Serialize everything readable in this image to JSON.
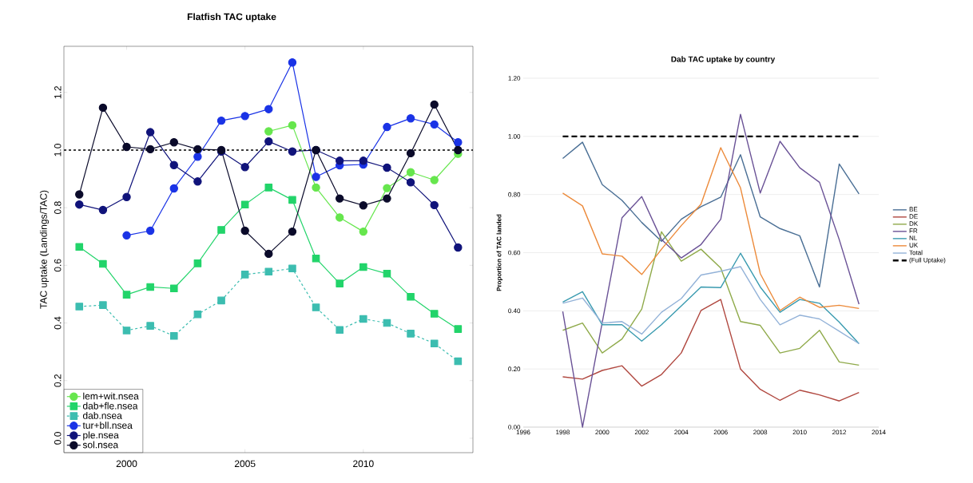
{
  "chart_data": [
    {
      "type": "line",
      "title": "Flatfish TAC uptake",
      "ylabel": "TAC uptake (Landings/TAC)",
      "x": [
        1998,
        1999,
        2000,
        2001,
        2002,
        2003,
        2004,
        2005,
        2006,
        2007,
        2008,
        2009,
        2010,
        2011,
        2012,
        2013,
        2014
      ],
      "series": [
        {
          "name": "lem+wit.nsea",
          "color": "#66e64d",
          "marker": "circle",
          "line_style": "solid",
          "values": [
            null,
            null,
            null,
            null,
            null,
            null,
            null,
            null,
            1.065,
            1.086,
            0.87,
            0.766,
            0.717,
            0.868,
            0.923,
            0.896,
            0.987
          ]
        },
        {
          "name": "dab+fle.nsea",
          "color": "#22d46a",
          "marker": "square",
          "line_style": "solid",
          "values": [
            0.664,
            0.605,
            0.498,
            0.525,
            0.52,
            0.607,
            0.723,
            0.811,
            0.87,
            0.827,
            0.624,
            0.537,
            0.594,
            0.571,
            0.491,
            0.432,
            0.379
          ]
        },
        {
          "name": "dab.nsea",
          "color": "#3cbdb0",
          "marker": "square",
          "line_style": "dashed",
          "values": [
            0.457,
            0.462,
            0.374,
            0.39,
            0.355,
            0.43,
            0.478,
            0.568,
            0.578,
            0.589,
            0.454,
            0.376,
            0.414,
            0.4,
            0.363,
            0.329,
            0.267
          ]
        },
        {
          "name": "tur+bll.nsea",
          "color": "#1a33e6",
          "marker": "circle",
          "line_style": "solid",
          "values": [
            null,
            null,
            0.704,
            0.72,
            0.867,
            0.977,
            1.102,
            1.118,
            1.142,
            1.304,
            0.907,
            0.947,
            0.95,
            1.08,
            1.11,
            1.089,
            1.027
          ]
        },
        {
          "name": "ple.nsea",
          "color": "#10137a",
          "marker": "circle",
          "line_style": "solid",
          "values": [
            0.811,
            0.792,
            0.837,
            1.062,
            0.948,
            0.891,
            0.995,
            0.941,
            1.03,
            0.995,
            1.0,
            0.963,
            0.963,
            0.939,
            0.888,
            0.809,
            0.662
          ]
        },
        {
          "name": "sol.nsea",
          "color": "#0a0a2a",
          "marker": "circle",
          "line_style": "solid",
          "values": [
            0.846,
            1.147,
            1.011,
            1.003,
            1.027,
            1.003,
            1.0,
            0.72,
            0.64,
            0.717,
            1.0,
            0.832,
            0.808,
            0.832,
            0.989,
            1.158,
            1.0
          ]
        }
      ],
      "xlim": [
        1997.35,
        2014.63
      ],
      "ylim": [
        -0.05,
        1.36
      ],
      "xticks": [
        2000,
        2005,
        2010
      ],
      "yticks": [
        {
          "value": 0,
          "label": "0.0"
        },
        {
          "value": 0.2,
          "label": "0.2"
        },
        {
          "value": 0.4,
          "label": "0.4"
        },
        {
          "value": 0.6,
          "label": "0.6"
        },
        {
          "value": 0.8,
          "label": "0.8"
        },
        {
          "value": 1,
          "label": "1.0"
        },
        {
          "value": 1.2,
          "label": "1.2"
        }
      ],
      "ref_lines": [
        {
          "axis": "y",
          "value": 1,
          "color": "#000000",
          "line_style": "dashed"
        }
      ],
      "grid": false,
      "legend": "bottom left"
    },
    {
      "type": "line",
      "title": "Dab TAC uptake by country",
      "ylabel": "Proportion of TAC landed",
      "x": [
        1998,
        1999,
        2000,
        2001,
        2002,
        2003,
        2004,
        2005,
        2006,
        2007,
        2008,
        2009,
        2010,
        2011,
        2012,
        2013
      ],
      "series": [
        {
          "name": "BE",
          "color": "#4a6f95",
          "line_style": "solid",
          "values": [
            0.924,
            0.98,
            0.834,
            0.78,
            0.704,
            0.639,
            0.715,
            0.758,
            0.791,
            0.937,
            0.723,
            0.683,
            0.658,
            0.482,
            0.905,
            0.802
          ]
        },
        {
          "name": "DE",
          "color": "#b0473f",
          "line_style": "solid",
          "values": [
            0.173,
            0.165,
            0.195,
            0.211,
            0.141,
            0.181,
            0.255,
            0.401,
            0.439,
            0.2,
            0.13,
            0.092,
            0.127,
            0.111,
            0.09,
            0.119
          ]
        },
        {
          "name": "DK",
          "color": "#8faa4a",
          "line_style": "solid",
          "values": [
            0.333,
            0.358,
            0.255,
            0.303,
            0.406,
            0.672,
            0.571,
            0.612,
            0.547,
            0.363,
            0.35,
            0.255,
            0.271,
            0.333,
            0.224,
            0.213
          ]
        },
        {
          "name": "FR",
          "color": "#6a5296",
          "line_style": "solid",
          "values": [
            0.398,
            0.0,
            0.36,
            0.72,
            0.793,
            0.645,
            0.582,
            0.628,
            0.715,
            1.076,
            0.805,
            0.983,
            0.892,
            0.842,
            0.645,
            0.423
          ]
        },
        {
          "name": "NL",
          "color": "#3a9bb0",
          "line_style": "solid",
          "values": [
            0.43,
            0.466,
            0.352,
            0.352,
            0.296,
            0.352,
            0.417,
            0.482,
            0.48,
            0.598,
            0.482,
            0.395,
            0.439,
            0.426,
            0.361,
            0.287
          ]
        },
        {
          "name": "UK",
          "color": "#ec8a3a",
          "line_style": "solid",
          "values": [
            0.805,
            0.761,
            0.596,
            0.588,
            0.525,
            0.612,
            0.693,
            0.767,
            0.961,
            0.823,
            0.528,
            0.401,
            0.447,
            0.412,
            0.419,
            0.408
          ]
        },
        {
          "name": "Total",
          "color": "#93b2d8",
          "line_style": "solid",
          "values": [
            0.426,
            0.444,
            0.358,
            0.363,
            0.32,
            0.395,
            0.442,
            0.523,
            0.536,
            0.552,
            0.439,
            0.352,
            0.385,
            0.372,
            0.33,
            0.287
          ]
        },
        {
          "name": "(Full Uptake)",
          "color": "#000000",
          "line_style": "dashed",
          "values": [
            1,
            1,
            1,
            1,
            1,
            1,
            1,
            1,
            1,
            1,
            1,
            1,
            1,
            1,
            1,
            1
          ]
        }
      ],
      "xlim": [
        1996,
        2014
      ],
      "ylim": [
        0,
        1.2
      ],
      "xticks": [
        1996,
        1998,
        2000,
        2002,
        2004,
        2006,
        2008,
        2010,
        2012,
        2014
      ],
      "yticks": [
        {
          "value": 0,
          "label": "0.00"
        },
        {
          "value": 0.2,
          "label": "0.20"
        },
        {
          "value": 0.4,
          "label": "0.40"
        },
        {
          "value": 0.6,
          "label": "0.60"
        },
        {
          "value": 0.8,
          "label": "0.80"
        },
        {
          "value": 1,
          "label": "1.00"
        },
        {
          "value": 1.2,
          "label": "1.20"
        }
      ],
      "grid": "y",
      "legend": "right"
    }
  ]
}
